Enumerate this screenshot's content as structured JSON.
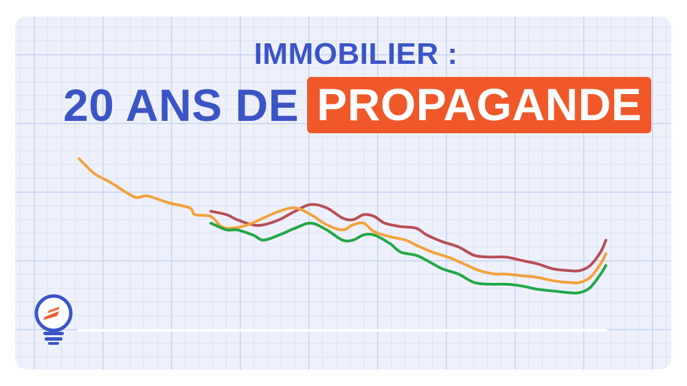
{
  "title": {
    "line1": "IMMOBILIER :",
    "line2_prefix": "20 ANS DE",
    "line2_highlight": "PROPAGANDE"
  },
  "colors": {
    "title_blue": "#3b55c6",
    "highlight_orange": "#f0582a",
    "baseline": "#ffffff"
  },
  "logo": {
    "icon": "lightbulb-icon"
  },
  "chart_data": {
    "type": "line",
    "xlabel": "",
    "ylabel": "",
    "xlim": [
      0,
      100
    ],
    "ylim": [
      0,
      100
    ],
    "grid": true,
    "legend": "none",
    "series": [
      {
        "color": "#f4a13c",
        "points": [
          [
            0,
            100
          ],
          [
            3,
            91
          ],
          [
            6,
            86
          ],
          [
            9,
            80
          ],
          [
            11,
            77
          ],
          [
            13,
            78
          ],
          [
            17,
            74
          ],
          [
            21,
            71
          ],
          [
            22,
            67
          ],
          [
            25,
            66
          ],
          [
            27,
            60
          ],
          [
            29,
            59
          ],
          [
            32,
            61
          ],
          [
            35,
            65
          ],
          [
            38,
            69
          ],
          [
            41,
            71
          ],
          [
            44,
            67
          ],
          [
            47,
            61
          ],
          [
            50,
            58
          ],
          [
            52,
            61
          ],
          [
            54,
            62
          ],
          [
            56,
            57
          ],
          [
            59,
            54
          ],
          [
            62,
            52
          ],
          [
            64,
            49
          ],
          [
            67,
            45
          ],
          [
            70,
            42
          ],
          [
            73,
            38
          ],
          [
            76,
            34
          ],
          [
            79,
            32
          ],
          [
            81,
            32
          ],
          [
            84,
            31
          ],
          [
            87,
            30
          ],
          [
            90,
            28
          ],
          [
            93,
            27
          ],
          [
            95,
            27
          ],
          [
            97,
            30
          ],
          [
            99,
            38
          ],
          [
            100,
            44
          ]
        ]
      },
      {
        "color": "#b84d55",
        "points": [
          [
            25,
            69
          ],
          [
            28,
            67
          ],
          [
            30,
            64
          ],
          [
            33,
            61
          ],
          [
            35,
            61
          ],
          [
            38,
            64
          ],
          [
            41,
            69
          ],
          [
            44,
            73
          ],
          [
            47,
            71
          ],
          [
            50,
            65
          ],
          [
            52,
            64
          ],
          [
            54,
            67
          ],
          [
            56,
            66
          ],
          [
            58,
            62
          ],
          [
            61,
            60
          ],
          [
            64,
            59
          ],
          [
            66,
            55
          ],
          [
            69,
            51
          ],
          [
            72,
            48
          ],
          [
            75,
            43
          ],
          [
            78,
            42
          ],
          [
            81,
            42
          ],
          [
            84,
            40
          ],
          [
            87,
            38
          ],
          [
            90,
            35
          ],
          [
            93,
            34
          ],
          [
            95,
            34
          ],
          [
            97,
            37
          ],
          [
            99,
            45
          ],
          [
            100,
            52
          ]
        ]
      },
      {
        "color": "#22a746",
        "points": [
          [
            25,
            62
          ],
          [
            28,
            58
          ],
          [
            30,
            58
          ],
          [
            33,
            55
          ],
          [
            35,
            52
          ],
          [
            38,
            55
          ],
          [
            41,
            59
          ],
          [
            44,
            62
          ],
          [
            47,
            58
          ],
          [
            50,
            52
          ],
          [
            52,
            52
          ],
          [
            54,
            55
          ],
          [
            56,
            55
          ],
          [
            59,
            50
          ],
          [
            61,
            45
          ],
          [
            64,
            43
          ],
          [
            66,
            40
          ],
          [
            69,
            35
          ],
          [
            72,
            32
          ],
          [
            75,
            27
          ],
          [
            78,
            26
          ],
          [
            81,
            26
          ],
          [
            84,
            25
          ],
          [
            87,
            23
          ],
          [
            90,
            22
          ],
          [
            93,
            21
          ],
          [
            95,
            21
          ],
          [
            97,
            24
          ],
          [
            99,
            32
          ],
          [
            100,
            37
          ]
        ]
      }
    ]
  }
}
